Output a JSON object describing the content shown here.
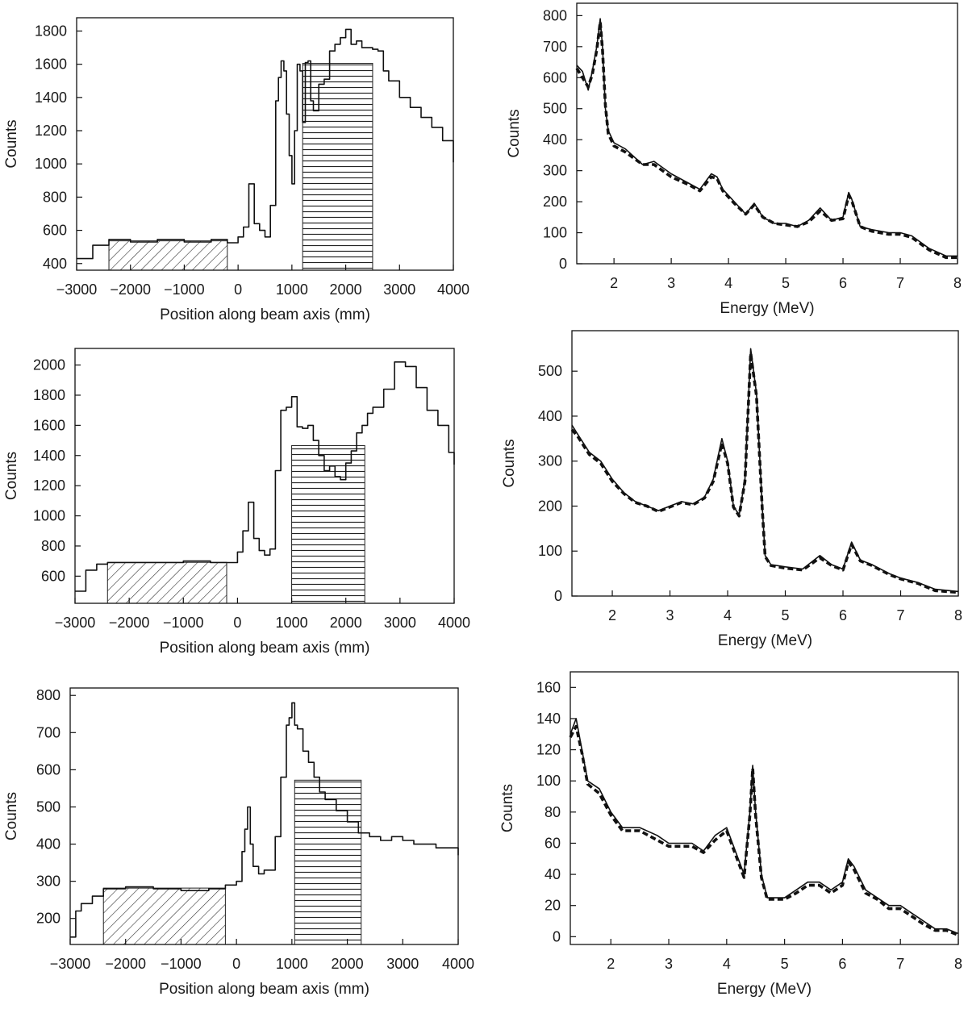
{
  "chart_data": [
    {
      "id": "position-1",
      "type": "line",
      "xlabel": "Position along beam axis (mm)",
      "ylabel": "Counts",
      "xlim": [
        -3000,
        4000
      ],
      "ylim": [
        360,
        1880
      ],
      "xticks": [
        -3000,
        -2000,
        -1000,
        0,
        1000,
        2000,
        3000,
        4000
      ],
      "yticks": [
        400,
        600,
        800,
        1000,
        1200,
        1400,
        1600,
        1800
      ],
      "bands": [
        {
          "from": -2400,
          "to": -200,
          "pattern": "diagonal"
        },
        {
          "from": 1200,
          "to": 2500,
          "pattern": "horizontal"
        }
      ],
      "series": [
        {
          "style": "histogram",
          "x": [
            -3000,
            -2700,
            -2400,
            -2000,
            -1500,
            -1000,
            -500,
            -200,
            0,
            100,
            200,
            300,
            400,
            500,
            600,
            700,
            750,
            800,
            850,
            900,
            950,
            1000,
            1050,
            1100,
            1150,
            1200,
            1250,
            1300,
            1350,
            1400,
            1500,
            1600,
            1700,
            1800,
            1900,
            2000,
            2100,
            2200,
            2300,
            2400,
            2500,
            2600,
            2700,
            2800,
            3000,
            3200,
            3400,
            3600,
            3800,
            4000
          ],
          "y": [
            430,
            510,
            545,
            530,
            545,
            530,
            545,
            525,
            560,
            620,
            880,
            640,
            600,
            560,
            750,
            1380,
            1520,
            1620,
            1560,
            1300,
            1050,
            880,
            1200,
            1600,
            1560,
            1250,
            1610,
            1620,
            1380,
            1320,
            1480,
            1510,
            1680,
            1720,
            1760,
            1810,
            1720,
            1740,
            1700,
            1700,
            1690,
            1680,
            1560,
            1500,
            1400,
            1340,
            1280,
            1220,
            1140,
            1010
          ]
        }
      ]
    },
    {
      "id": "energy-1",
      "type": "line",
      "xlabel": "Energy (MeV)",
      "ylabel": "Counts",
      "xlim": [
        1.35,
        8.0
      ],
      "ylim": [
        0,
        840
      ],
      "xticks": [
        2,
        3,
        4,
        5,
        6,
        7,
        8
      ],
      "yticks": [
        0,
        100,
        200,
        300,
        400,
        500,
        600,
        700,
        800
      ],
      "series": [
        {
          "style": "solid",
          "x": [
            1.35,
            1.45,
            1.55,
            1.62,
            1.7,
            1.76,
            1.8,
            1.85,
            1.9,
            2.0,
            2.2,
            2.5,
            2.7,
            3.0,
            3.3,
            3.5,
            3.7,
            3.8,
            3.9,
            4.1,
            4.3,
            4.45,
            4.6,
            4.8,
            5.0,
            5.2,
            5.4,
            5.6,
            5.8,
            6.0,
            6.1,
            6.15,
            6.3,
            6.5,
            6.8,
            7.0,
            7.2,
            7.5,
            7.8,
            8.0
          ],
          "y": [
            640,
            620,
            560,
            620,
            700,
            790,
            700,
            500,
            430,
            390,
            370,
            320,
            330,
            290,
            260,
            240,
            290,
            280,
            240,
            200,
            160,
            195,
            150,
            130,
            130,
            120,
            140,
            180,
            140,
            150,
            230,
            210,
            120,
            110,
            100,
            100,
            90,
            50,
            25,
            25
          ]
        },
        {
          "style": "dashed",
          "x": [
            1.35,
            1.45,
            1.55,
            1.62,
            1.7,
            1.76,
            1.8,
            1.85,
            1.9,
            2.0,
            2.2,
            2.5,
            2.7,
            3.0,
            3.3,
            3.5,
            3.7,
            3.8,
            3.9,
            4.1,
            4.3,
            4.45,
            4.6,
            4.8,
            5.0,
            5.2,
            5.4,
            5.6,
            5.8,
            6.0,
            6.1,
            6.15,
            6.3,
            6.5,
            6.8,
            7.0,
            7.2,
            7.5,
            7.8,
            8.0
          ],
          "y": [
            630,
            600,
            570,
            610,
            690,
            780,
            690,
            510,
            420,
            380,
            360,
            320,
            320,
            280,
            255,
            235,
            280,
            275,
            235,
            195,
            160,
            190,
            150,
            130,
            125,
            120,
            135,
            170,
            140,
            145,
            220,
            205,
            120,
            105,
            95,
            95,
            85,
            45,
            20,
            20
          ]
        }
      ]
    },
    {
      "id": "position-2",
      "type": "line",
      "xlabel": "Position along beam axis (mm)",
      "ylabel": "Counts",
      "xlim": [
        -3000,
        4000
      ],
      "ylim": [
        420,
        2110
      ],
      "xticks": [
        -3000,
        -2000,
        -1000,
        0,
        1000,
        2000,
        3000,
        4000
      ],
      "yticks": [
        600,
        800,
        1000,
        1200,
        1400,
        1600,
        1800,
        2000
      ],
      "bands": [
        {
          "from": -2400,
          "to": -200,
          "pattern": "diagonal"
        },
        {
          "from": 1000,
          "to": 2350,
          "pattern": "horizontal"
        }
      ],
      "series": [
        {
          "style": "histogram",
          "x": [
            -3000,
            -2800,
            -2600,
            -2400,
            -2000,
            -1500,
            -1000,
            -500,
            -200,
            0,
            100,
            200,
            300,
            400,
            500,
            600,
            700,
            800,
            900,
            1000,
            1100,
            1200,
            1300,
            1400,
            1500,
            1600,
            1700,
            1800,
            1900,
            2000,
            2100,
            2200,
            2300,
            2400,
            2500,
            2700,
            2900,
            3100,
            3300,
            3500,
            3700,
            3900,
            4000
          ],
          "y": [
            500,
            640,
            680,
            690,
            690,
            690,
            700,
            690,
            690,
            760,
            900,
            1090,
            850,
            770,
            740,
            780,
            1300,
            1700,
            1720,
            1790,
            1590,
            1580,
            1600,
            1500,
            1400,
            1300,
            1330,
            1260,
            1240,
            1350,
            1430,
            1550,
            1600,
            1680,
            1720,
            1840,
            2020,
            1990,
            1850,
            1700,
            1600,
            1420,
            1340
          ]
        }
      ]
    },
    {
      "id": "energy-2",
      "type": "line",
      "xlabel": "Energy (MeV)",
      "ylabel": "Counts",
      "xlim": [
        1.3,
        8.0
      ],
      "ylim": [
        0,
        590
      ],
      "xticks": [
        2,
        3,
        4,
        5,
        6,
        7,
        8
      ],
      "yticks": [
        0,
        100,
        200,
        300,
        400,
        500
      ],
      "series": [
        {
          "style": "solid",
          "x": [
            1.3,
            1.4,
            1.6,
            1.8,
            2.0,
            2.2,
            2.4,
            2.6,
            2.8,
            3.0,
            3.2,
            3.4,
            3.6,
            3.75,
            3.9,
            4.0,
            4.1,
            4.2,
            4.3,
            4.4,
            4.5,
            4.6,
            4.65,
            4.75,
            5.0,
            5.3,
            5.6,
            5.8,
            6.0,
            6.15,
            6.3,
            6.5,
            6.8,
            7.0,
            7.3,
            7.6,
            8.0
          ],
          "y": [
            380,
            360,
            320,
            300,
            260,
            230,
            210,
            200,
            190,
            200,
            210,
            205,
            220,
            260,
            350,
            300,
            200,
            180,
            260,
            550,
            450,
            200,
            90,
            70,
            65,
            60,
            90,
            70,
            60,
            120,
            80,
            70,
            50,
            40,
            30,
            15,
            10
          ]
        },
        {
          "style": "dashed",
          "x": [
            1.3,
            1.4,
            1.6,
            1.8,
            2.0,
            2.2,
            2.4,
            2.6,
            2.8,
            3.0,
            3.2,
            3.4,
            3.6,
            3.75,
            3.9,
            4.0,
            4.1,
            4.2,
            4.3,
            4.4,
            4.5,
            4.6,
            4.65,
            4.75,
            5.0,
            5.3,
            5.6,
            5.8,
            6.0,
            6.15,
            6.3,
            6.5,
            6.8,
            7.0,
            7.3,
            7.6,
            8.0
          ],
          "y": [
            370,
            355,
            315,
            295,
            255,
            228,
            208,
            200,
            188,
            198,
            208,
            203,
            218,
            255,
            340,
            295,
            198,
            178,
            255,
            540,
            445,
            195,
            88,
            68,
            62,
            58,
            85,
            68,
            58,
            115,
            78,
            68,
            48,
            38,
            28,
            12,
            8
          ]
        }
      ]
    },
    {
      "id": "position-3",
      "type": "line",
      "xlabel": "Position along beam axis (mm)",
      "ylabel": "Counts",
      "xlim": [
        -3000,
        4000
      ],
      "ylim": [
        130,
        820
      ],
      "xticks": [
        -3000,
        -2000,
        -1000,
        0,
        1000,
        2000,
        3000,
        4000
      ],
      "yticks": [
        200,
        300,
        400,
        500,
        600,
        700,
        800
      ],
      "bands": [
        {
          "from": -2400,
          "to": -200,
          "pattern": "diagonal"
        },
        {
          "from": 1050,
          "to": 2250,
          "pattern": "horizontal"
        }
      ],
      "series": [
        {
          "style": "histogram",
          "x": [
            -3000,
            -2900,
            -2800,
            -2600,
            -2400,
            -2000,
            -1500,
            -1000,
            -500,
            -200,
            0,
            100,
            150,
            200,
            250,
            300,
            400,
            500,
            600,
            700,
            800,
            900,
            950,
            1000,
            1050,
            1100,
            1200,
            1300,
            1400,
            1500,
            1600,
            1800,
            2000,
            2200,
            2400,
            2600,
            2800,
            3000,
            3200,
            3400,
            3600,
            3800,
            4000
          ],
          "y": [
            150,
            220,
            240,
            260,
            280,
            285,
            280,
            275,
            280,
            290,
            300,
            380,
            440,
            500,
            400,
            340,
            320,
            330,
            330,
            420,
            580,
            720,
            740,
            780,
            720,
            710,
            650,
            620,
            580,
            540,
            520,
            490,
            460,
            430,
            420,
            410,
            420,
            410,
            400,
            400,
            390,
            390,
            370
          ]
        }
      ]
    },
    {
      "id": "energy-3",
      "type": "line",
      "xlabel": "Energy (MeV)",
      "ylabel": "Counts",
      "xlim": [
        1.3,
        8.0
      ],
      "ylim": [
        -5,
        170
      ],
      "xticks": [
        2,
        3,
        4,
        5,
        6,
        7,
        8
      ],
      "yticks": [
        0,
        20,
        40,
        60,
        80,
        100,
        120,
        140,
        160
      ],
      "series": [
        {
          "style": "solid",
          "x": [
            1.3,
            1.4,
            1.5,
            1.6,
            1.8,
            2.0,
            2.2,
            2.5,
            2.8,
            3.0,
            3.2,
            3.4,
            3.6,
            3.8,
            4.0,
            4.1,
            4.2,
            4.3,
            4.4,
            4.45,
            4.5,
            4.6,
            4.7,
            4.8,
            5.0,
            5.2,
            5.4,
            5.6,
            5.8,
            6.0,
            6.1,
            6.2,
            6.4,
            6.6,
            6.8,
            7.0,
            7.2,
            7.4,
            7.6,
            7.8,
            8.0
          ],
          "y": [
            130,
            140,
            120,
            100,
            95,
            80,
            70,
            70,
            65,
            60,
            60,
            60,
            55,
            65,
            70,
            60,
            50,
            40,
            80,
            110,
            80,
            40,
            25,
            25,
            25,
            30,
            35,
            35,
            30,
            35,
            50,
            45,
            30,
            25,
            20,
            20,
            15,
            10,
            5,
            5,
            2
          ]
        },
        {
          "style": "dashed",
          "x": [
            1.3,
            1.4,
            1.5,
            1.6,
            1.8,
            2.0,
            2.2,
            2.5,
            2.8,
            3.0,
            3.2,
            3.4,
            3.6,
            3.8,
            4.0,
            4.1,
            4.2,
            4.3,
            4.4,
            4.45,
            4.5,
            4.6,
            4.7,
            4.8,
            5.0,
            5.2,
            5.4,
            5.6,
            5.8,
            6.0,
            6.1,
            6.2,
            6.4,
            6.6,
            6.8,
            7.0,
            7.2,
            7.4,
            7.6,
            7.8,
            8.0
          ],
          "y": [
            128,
            135,
            118,
            98,
            92,
            78,
            68,
            68,
            62,
            58,
            58,
            58,
            54,
            62,
            68,
            58,
            48,
            38,
            78,
            108,
            78,
            38,
            24,
            24,
            24,
            28,
            33,
            33,
            28,
            33,
            48,
            43,
            28,
            24,
            18,
            18,
            13,
            8,
            4,
            4,
            1
          ]
        }
      ]
    }
  ]
}
